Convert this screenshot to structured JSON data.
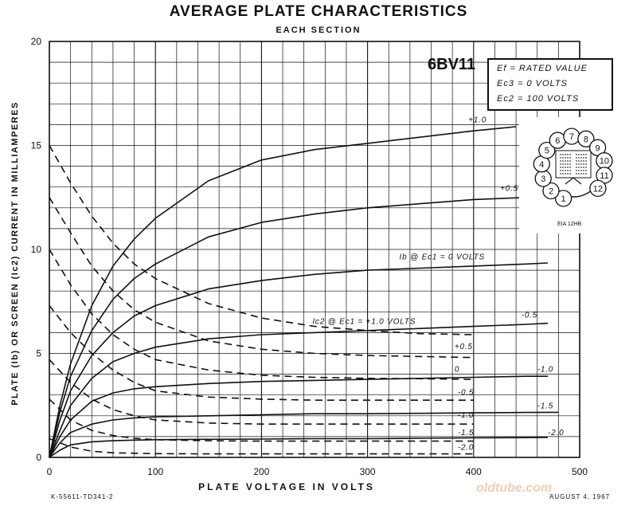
{
  "title": "AVERAGE PLATE CHARACTERISTICS",
  "subtitle": "EACH SECTION",
  "tube_type": "6BV11",
  "conditions": [
    "Ef = RATED VALUE",
    "Ec3 = 0 VOLTS",
    "Ec2 = 100 VOLTS"
  ],
  "basing": {
    "label": "EIA 12HB",
    "pins": [
      "1",
      "2",
      "3",
      "4",
      "5",
      "6",
      "7",
      "8",
      "9",
      "10",
      "11",
      "12"
    ]
  },
  "doc_id": "K-55611-TD341-2",
  "date": "AUGUST 4, 1967",
  "watermark": "oldtube.com",
  "chart_data": {
    "type": "line",
    "title": "AVERAGE PLATE CHARACTERISTICS",
    "subtitle": "EACH SECTION",
    "xlabel": "PLATE VOLTAGE IN VOLTS",
    "ylabel": "PLATE (Ib) OR SCREEN (Ic2) CURRENT IN MILLIAMPERES",
    "xlim": [
      0,
      500
    ],
    "ylim": [
      0,
      20
    ],
    "xticks": [
      0,
      100,
      200,
      300,
      400,
      500
    ],
    "yticks": [
      0,
      5,
      10,
      15,
      20
    ],
    "grid": true,
    "series": [
      {
        "group": "plate",
        "style": "solid",
        "label": "+1.0",
        "x": [
          0,
          10,
          20,
          40,
          60,
          80,
          100,
          150,
          200,
          250,
          300,
          350,
          400,
          440
        ],
        "y": [
          0,
          2.5,
          4.5,
          7.3,
          9.2,
          10.5,
          11.5,
          13.3,
          14.3,
          14.8,
          15.1,
          15.4,
          15.7,
          15.9
        ]
      },
      {
        "group": "plate",
        "style": "solid",
        "label": "+0.5",
        "x": [
          0,
          10,
          20,
          40,
          60,
          80,
          100,
          150,
          200,
          250,
          300,
          350,
          400,
          450
        ],
        "y": [
          0,
          2.2,
          3.9,
          6.1,
          7.6,
          8.6,
          9.3,
          10.6,
          11.3,
          11.7,
          12.0,
          12.2,
          12.4,
          12.5
        ]
      },
      {
        "group": "plate",
        "style": "solid",
        "label": "Ib @ Ec1 = 0 VOLTS",
        "x": [
          0,
          10,
          20,
          40,
          60,
          80,
          100,
          150,
          200,
          250,
          300,
          350,
          400,
          450,
          470
        ],
        "y": [
          0,
          1.8,
          3.2,
          4.9,
          6.0,
          6.8,
          7.3,
          8.1,
          8.5,
          8.8,
          9.0,
          9.1,
          9.2,
          9.3,
          9.35
        ]
      },
      {
        "group": "plate",
        "style": "solid",
        "label": "-0.5",
        "x": [
          0,
          10,
          20,
          40,
          60,
          80,
          100,
          150,
          200,
          250,
          300,
          350,
          400,
          450,
          470
        ],
        "y": [
          0,
          1.3,
          2.5,
          3.8,
          4.6,
          5.0,
          5.3,
          5.7,
          5.9,
          6.0,
          6.1,
          6.2,
          6.3,
          6.4,
          6.45
        ]
      },
      {
        "group": "plate",
        "style": "solid",
        "label": "-1.0",
        "x": [
          0,
          10,
          20,
          40,
          60,
          80,
          100,
          150,
          200,
          250,
          300,
          350,
          400,
          450,
          470
        ],
        "y": [
          0,
          1.0,
          1.8,
          2.7,
          3.1,
          3.3,
          3.4,
          3.55,
          3.65,
          3.7,
          3.75,
          3.8,
          3.85,
          3.9,
          3.9
        ]
      },
      {
        "group": "plate",
        "style": "solid",
        "label": "-1.5",
        "x": [
          0,
          10,
          20,
          40,
          60,
          80,
          100,
          150,
          200,
          250,
          300,
          350,
          400,
          450,
          480
        ],
        "y": [
          0,
          0.7,
          1.2,
          1.6,
          1.8,
          1.9,
          1.95,
          2.0,
          2.05,
          2.1,
          2.1,
          2.12,
          2.14,
          2.16,
          2.17
        ]
      },
      {
        "group": "plate",
        "style": "solid",
        "label": "-2.0",
        "x": [
          0,
          10,
          20,
          40,
          60,
          80,
          100,
          150,
          200,
          250,
          300,
          350,
          400,
          450,
          470
        ],
        "y": [
          0,
          0.35,
          0.6,
          0.75,
          0.8,
          0.83,
          0.85,
          0.87,
          0.88,
          0.9,
          0.9,
          0.92,
          0.94,
          0.95,
          0.96
        ]
      },
      {
        "group": "screen",
        "style": "dashed",
        "label": "Ic2 @ Ec1 = +1.0 VOLTS",
        "x": [
          0,
          20,
          40,
          60,
          80,
          100,
          150,
          200,
          250,
          300,
          350,
          400
        ],
        "y": [
          15.0,
          13.2,
          11.6,
          10.3,
          9.3,
          8.6,
          7.4,
          6.7,
          6.3,
          6.1,
          5.95,
          5.9
        ]
      },
      {
        "group": "screen",
        "style": "dashed",
        "label": "+0.5",
        "x": [
          0,
          20,
          40,
          60,
          80,
          100,
          150,
          200,
          250,
          300,
          350,
          400
        ],
        "y": [
          12.5,
          10.8,
          9.2,
          8.0,
          7.1,
          6.5,
          5.6,
          5.2,
          5.0,
          4.9,
          4.85,
          4.8
        ]
      },
      {
        "group": "screen",
        "style": "dashed",
        "label": "0",
        "x": [
          0,
          20,
          40,
          60,
          80,
          100,
          150,
          200,
          250,
          300,
          350,
          400
        ],
        "y": [
          10.0,
          8.3,
          6.9,
          5.9,
          5.2,
          4.7,
          4.2,
          3.95,
          3.85,
          3.8,
          3.78,
          3.75
        ]
      },
      {
        "group": "screen",
        "style": "dashed",
        "label": "-0.5",
        "x": [
          0,
          20,
          40,
          60,
          80,
          100,
          150,
          200,
          250,
          300,
          350,
          400
        ],
        "y": [
          7.3,
          6.0,
          5.0,
          4.2,
          3.6,
          3.2,
          2.9,
          2.8,
          2.75,
          2.75,
          2.75,
          2.75
        ]
      },
      {
        "group": "screen",
        "style": "dashed",
        "label": "-1.0",
        "x": [
          0,
          20,
          40,
          60,
          80,
          100,
          150,
          200,
          250,
          300,
          350,
          400
        ],
        "y": [
          4.7,
          3.6,
          2.8,
          2.3,
          2.0,
          1.8,
          1.65,
          1.6,
          1.6,
          1.6,
          1.6,
          1.6
        ]
      },
      {
        "group": "screen",
        "style": "dashed",
        "label": "-1.5",
        "x": [
          0,
          20,
          40,
          60,
          80,
          100,
          150,
          200,
          250,
          300,
          350,
          400
        ],
        "y": [
          2.8,
          1.8,
          1.3,
          1.05,
          0.92,
          0.85,
          0.8,
          0.78,
          0.78,
          0.78,
          0.78,
          0.78
        ]
      },
      {
        "group": "screen",
        "style": "dashed",
        "label": "-2.0",
        "x": [
          0,
          20,
          40,
          60,
          80,
          100,
          150,
          200,
          250,
          300,
          350,
          400
        ],
        "y": [
          0.9,
          0.5,
          0.3,
          0.22,
          0.2,
          0.18,
          0.17,
          0.17,
          0.17,
          0.17,
          0.17,
          0.17
        ]
      }
    ],
    "annotations": [
      {
        "text": "+1.0",
        "x": 395,
        "y": 16.0
      },
      {
        "text": "+0.5",
        "x": 425,
        "y": 12.7
      },
      {
        "text": "Ib @ Ec1 = 0 VOLTS",
        "x": 330,
        "y": 9.4
      },
      {
        "text": "-0.5",
        "x": 445,
        "y": 6.6
      },
      {
        "text": "-1.0",
        "x": 460,
        "y": 4.0
      },
      {
        "text": "-1.5",
        "x": 460,
        "y": 2.25
      },
      {
        "text": "-2.0",
        "x": 470,
        "y": 0.95
      },
      {
        "text": "Ic2 @ Ec1 = +1.0 VOLTS",
        "x": 248,
        "y": 6.3
      },
      {
        "text": "+0.5",
        "x": 382,
        "y": 5.1
      },
      {
        "text": "0",
        "x": 382,
        "y": 4.0
      },
      {
        "text": "-0.5",
        "x": 385,
        "y": 2.9
      },
      {
        "text": "-1.0",
        "x": 385,
        "y": 1.8
      },
      {
        "text": "-1.5",
        "x": 385,
        "y": 0.95
      },
      {
        "text": "-2.0",
        "x": 385,
        "y": 0.25
      }
    ]
  }
}
